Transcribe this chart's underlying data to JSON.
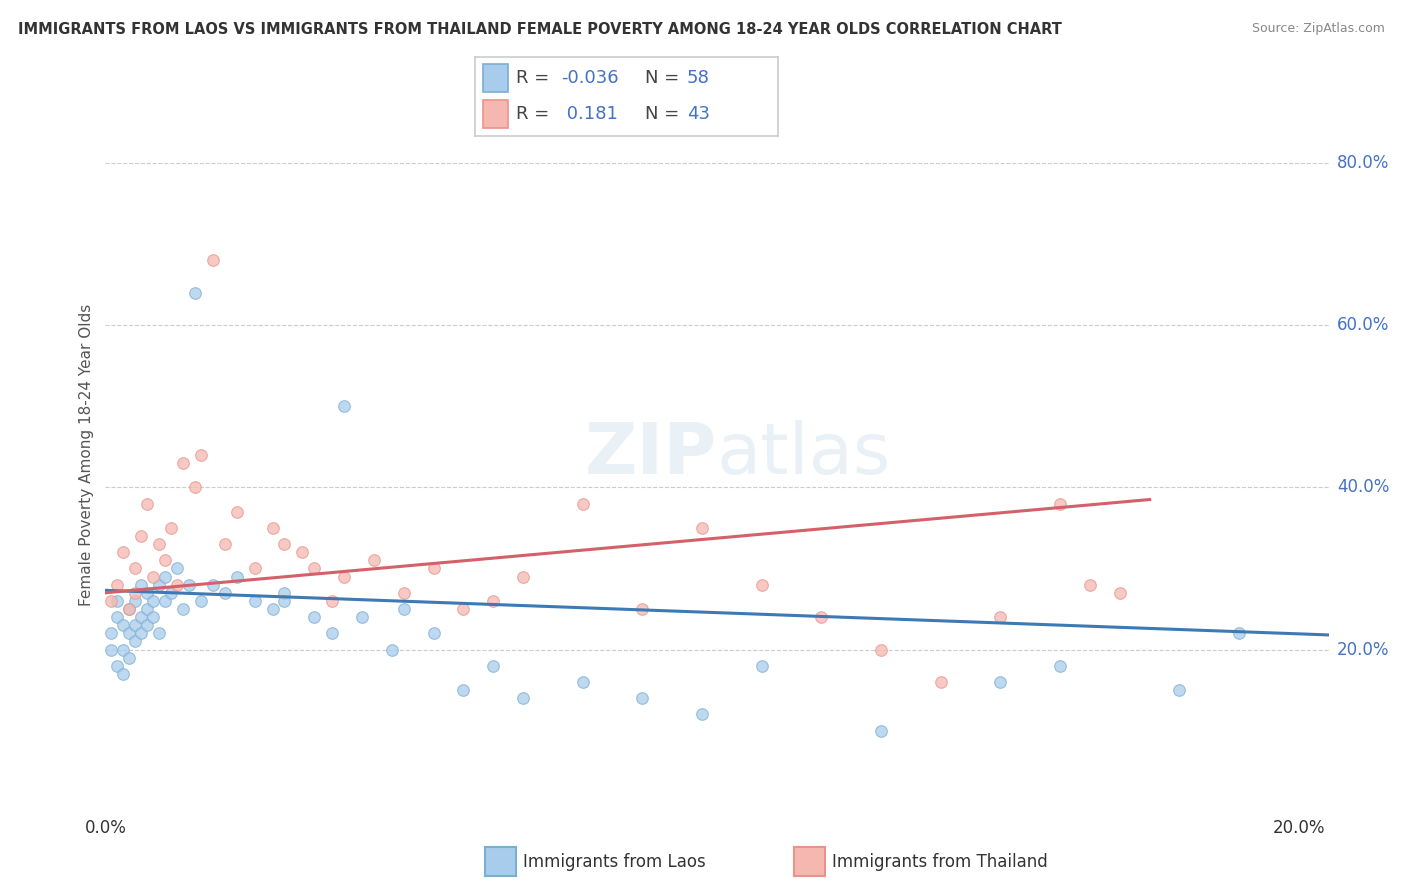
{
  "title": "IMMIGRANTS FROM LAOS VS IMMIGRANTS FROM THAILAND FEMALE POVERTY AMONG 18-24 YEAR OLDS CORRELATION CHART",
  "source": "Source: ZipAtlas.com",
  "ylabel": "Female Poverty Among 18-24 Year Olds",
  "xlim": [
    0.0,
    0.205
  ],
  "ylim": [
    0.0,
    0.88
  ],
  "ytick_vals": [
    0.2,
    0.4,
    0.6,
    0.8
  ],
  "ytick_labels": [
    "20.0%",
    "40.0%",
    "60.0%",
    "80.0%"
  ],
  "xtick_vals": [
    0.0,
    0.05,
    0.1,
    0.15,
    0.2
  ],
  "xtick_labels": [
    "0.0%",
    "",
    "",
    "",
    "20.0%"
  ],
  "r_laos": -0.036,
  "n_laos": 58,
  "r_thailand": 0.181,
  "n_thailand": 43,
  "color_laos_fill": "#a8ccec",
  "color_laos_edge": "#7aafd4",
  "color_laos_line": "#3d7ab5",
  "color_thailand_fill": "#f5b8b0",
  "color_thailand_edge": "#e8948a",
  "color_thailand_line": "#d4606a",
  "legend_box_color": "#cccccc",
  "color_r_value": "#4472c4",
  "color_grid": "#cccccc",
  "color_title": "#333333",
  "color_source": "#888888",
  "color_axis_label": "#555555",
  "color_tick_right": "#4472c4",
  "background_color": "#ffffff",
  "laos_x": [
    0.001,
    0.001,
    0.002,
    0.002,
    0.002,
    0.003,
    0.003,
    0.003,
    0.004,
    0.004,
    0.004,
    0.005,
    0.005,
    0.005,
    0.006,
    0.006,
    0.006,
    0.007,
    0.007,
    0.007,
    0.008,
    0.008,
    0.009,
    0.009,
    0.01,
    0.01,
    0.011,
    0.012,
    0.013,
    0.014,
    0.015,
    0.016,
    0.018,
    0.02,
    0.022,
    0.025,
    0.028,
    0.03,
    0.03,
    0.035,
    0.038,
    0.04,
    0.043,
    0.048,
    0.05,
    0.055,
    0.06,
    0.065,
    0.07,
    0.08,
    0.09,
    0.1,
    0.11,
    0.13,
    0.15,
    0.16,
    0.18,
    0.19
  ],
  "laos_y": [
    0.2,
    0.22,
    0.24,
    0.18,
    0.26,
    0.2,
    0.23,
    0.17,
    0.22,
    0.25,
    0.19,
    0.23,
    0.26,
    0.21,
    0.24,
    0.22,
    0.28,
    0.25,
    0.27,
    0.23,
    0.26,
    0.24,
    0.28,
    0.22,
    0.26,
    0.29,
    0.27,
    0.3,
    0.25,
    0.28,
    0.64,
    0.26,
    0.28,
    0.27,
    0.29,
    0.26,
    0.25,
    0.27,
    0.26,
    0.24,
    0.22,
    0.5,
    0.24,
    0.2,
    0.25,
    0.22,
    0.15,
    0.18,
    0.14,
    0.16,
    0.14,
    0.12,
    0.18,
    0.1,
    0.16,
    0.18,
    0.15,
    0.22
  ],
  "thailand_x": [
    0.001,
    0.002,
    0.003,
    0.004,
    0.005,
    0.005,
    0.006,
    0.007,
    0.008,
    0.009,
    0.01,
    0.011,
    0.012,
    0.013,
    0.015,
    0.016,
    0.018,
    0.02,
    0.022,
    0.025,
    0.028,
    0.03,
    0.033,
    0.035,
    0.038,
    0.04,
    0.045,
    0.05,
    0.055,
    0.06,
    0.065,
    0.07,
    0.08,
    0.09,
    0.1,
    0.11,
    0.12,
    0.13,
    0.14,
    0.15,
    0.16,
    0.165,
    0.17
  ],
  "thailand_y": [
    0.26,
    0.28,
    0.32,
    0.25,
    0.3,
    0.27,
    0.34,
    0.38,
    0.29,
    0.33,
    0.31,
    0.35,
    0.28,
    0.43,
    0.4,
    0.44,
    0.68,
    0.33,
    0.37,
    0.3,
    0.35,
    0.33,
    0.32,
    0.3,
    0.26,
    0.29,
    0.31,
    0.27,
    0.3,
    0.25,
    0.26,
    0.29,
    0.38,
    0.25,
    0.35,
    0.28,
    0.24,
    0.2,
    0.16,
    0.24,
    0.38,
    0.28,
    0.27
  ]
}
